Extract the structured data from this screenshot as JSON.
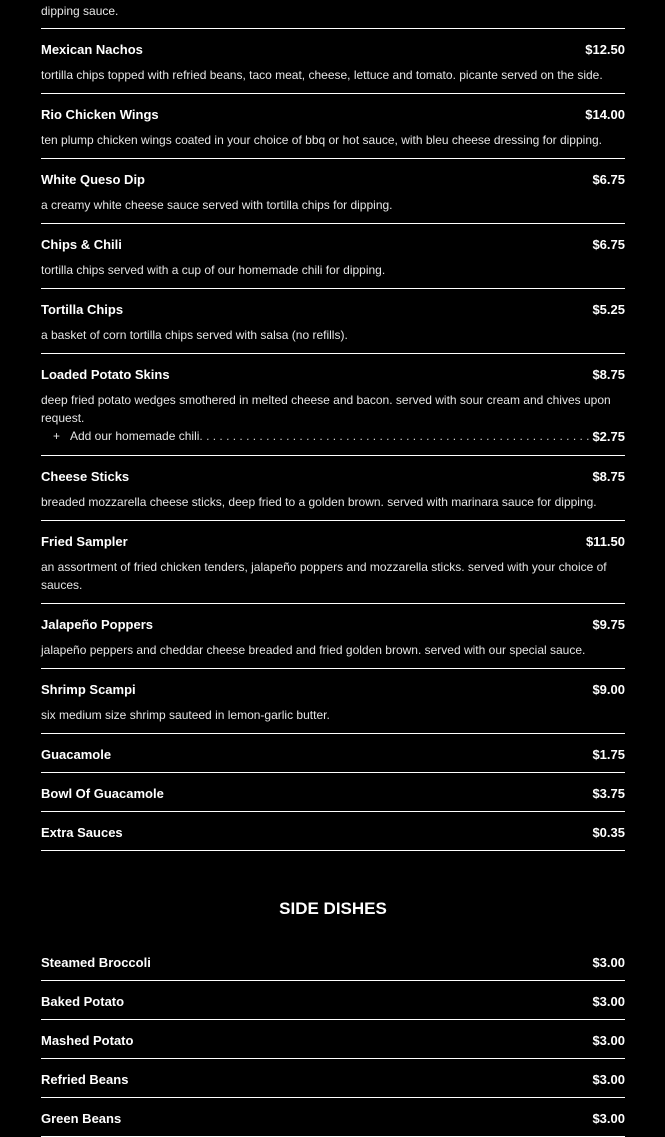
{
  "lead_text": "dipping sauce.",
  "appetizers": [
    {
      "name": "Mexican Nachos",
      "price": "$12.50",
      "desc": "tortilla chips topped with refried beans, taco meat, cheese, lettuce and tomato. picante served on the side."
    },
    {
      "name": "Rio Chicken Wings",
      "price": "$14.00",
      "desc": "ten plump chicken wings coated in your choice of bbq or hot sauce, with bleu cheese dressing for dipping."
    },
    {
      "name": "White Queso Dip",
      "price": "$6.75",
      "desc": "a creamy white cheese sauce served with tortilla chips for dipping."
    },
    {
      "name": "Chips & Chili",
      "price": "$6.75",
      "desc": "tortilla chips served with a cup of our homemade chili for dipping."
    },
    {
      "name": "Tortilla Chips",
      "price": "$5.25",
      "desc": "a basket of corn tortilla chips served with salsa (no refills)."
    },
    {
      "name": "Loaded Potato Skins",
      "price": "$8.75",
      "desc": "deep fried potato wedges smothered in melted cheese and bacon. served with sour cream and chives upon request.",
      "addon": {
        "symbol": "+",
        "label": "Add our homemade chili",
        "price": "$2.75"
      }
    },
    {
      "name": "Cheese Sticks",
      "price": "$8.75",
      "desc": "breaded mozzarella cheese sticks, deep fried to a golden brown. served with marinara sauce for dipping."
    },
    {
      "name": "Fried Sampler",
      "price": "$11.50",
      "desc": "an assortment of fried chicken tenders, jalapeño poppers and mozzarella sticks. served with your choice of sauces."
    },
    {
      "name": "Jalapeño Poppers",
      "price": "$9.75",
      "desc": "jalapeño peppers and cheddar cheese breaded and fried golden brown. served with our special sauce."
    },
    {
      "name": "Shrimp Scampi",
      "price": "$9.00",
      "desc": "six medium size shrimp sauteed in lemon-garlic butter."
    },
    {
      "name": "Guacamole",
      "price": "$1.75"
    },
    {
      "name": "Bowl Of Guacamole",
      "price": "$3.75"
    },
    {
      "name": "Extra Sauces",
      "price": "$0.35"
    }
  ],
  "side_dishes": {
    "title": "SIDE DISHES",
    "items": [
      {
        "name": "Steamed Broccoli",
        "price": "$3.00"
      },
      {
        "name": "Baked Potato",
        "price": "$3.00"
      },
      {
        "name": "Mashed Potato",
        "price": "$3.00"
      },
      {
        "name": "Refried Beans",
        "price": "$3.00"
      },
      {
        "name": "Green Beans",
        "price": "$3.00"
      }
    ]
  }
}
